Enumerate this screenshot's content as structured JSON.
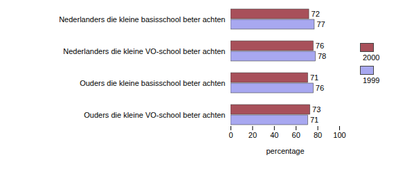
{
  "chart_data": {
    "type": "bar",
    "orientation": "horizontal",
    "categories": [
      "Nederlanders die kleine basisschool beter achten",
      "Nederlanders die kleine VO-school beter achten",
      "Ouders die kleine basisschool beter achten",
      "Ouders die kleine VO-school beter achten"
    ],
    "series": [
      {
        "name": "2000",
        "color": "#a8505a",
        "values": [
          72,
          76,
          71,
          73
        ]
      },
      {
        "name": "1999",
        "color": "#a8a8f0",
        "values": [
          77,
          78,
          76,
          71
        ]
      }
    ],
    "xlabel": "percentage",
    "xlim": [
      0,
      100
    ],
    "xticks": [
      0,
      20,
      40,
      60,
      80,
      100
    ],
    "grid": false,
    "legend": "right",
    "data_labels": true
  }
}
